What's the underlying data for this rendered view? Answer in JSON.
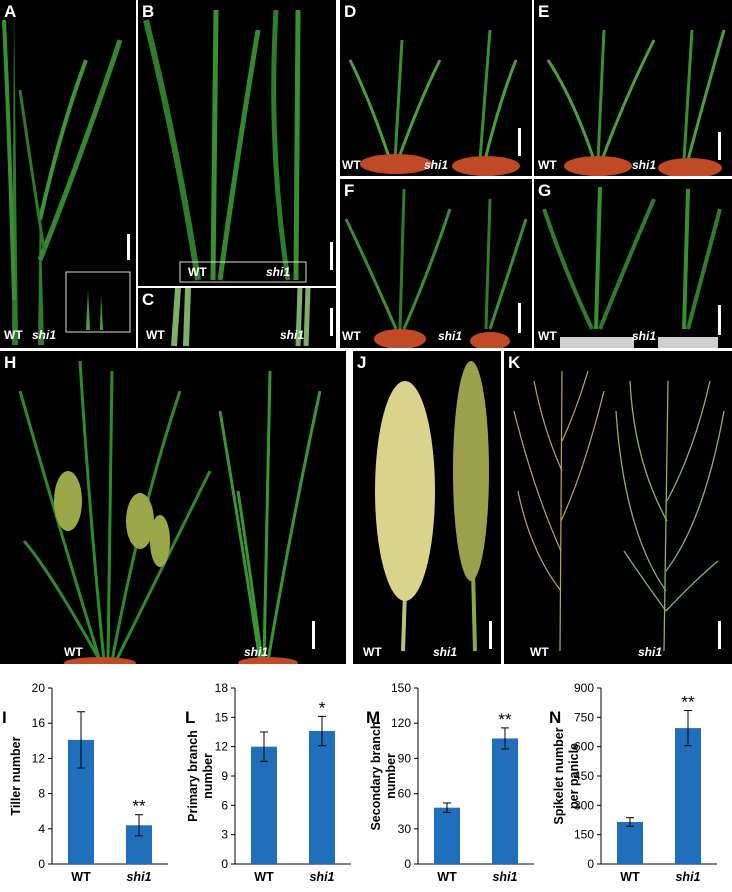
{
  "figure": {
    "panels": [
      {
        "id": "A",
        "labels": [
          "WT",
          "shi1"
        ]
      },
      {
        "id": "B",
        "labels": [
          "WT",
          "shi1"
        ]
      },
      {
        "id": "C",
        "labels": [
          "WT",
          "shi1"
        ]
      },
      {
        "id": "D",
        "labels": [
          "WT",
          "shi1"
        ]
      },
      {
        "id": "E",
        "labels": [
          "WT",
          "shi1"
        ]
      },
      {
        "id": "F",
        "labels": [
          "WT",
          "shi1"
        ]
      },
      {
        "id": "G",
        "labels": [
          "WT",
          "shi1"
        ]
      },
      {
        "id": "H",
        "labels": [
          "WT",
          "shi1"
        ]
      },
      {
        "id": "J",
        "labels": [
          "WT",
          "shi1"
        ]
      },
      {
        "id": "K",
        "labels": [
          "WT",
          "shi1"
        ]
      }
    ]
  },
  "chart_data": [
    {
      "id": "I",
      "type": "bar",
      "categories": [
        "WT",
        "shi1"
      ],
      "values": [
        14.1,
        4.4
      ],
      "errors": [
        3.2,
        1.2
      ],
      "significance": [
        "",
        "**"
      ],
      "title": "",
      "xlabel": "",
      "ylabel": "Tiller number",
      "ylim": [
        0,
        20
      ],
      "yticks": [
        0,
        4,
        8,
        12,
        16,
        20
      ],
      "grid": false,
      "bar_color": "#1f6fba"
    },
    {
      "id": "L",
      "type": "bar",
      "categories": [
        "WT",
        "shi1"
      ],
      "values": [
        12.0,
        13.6
      ],
      "errors": [
        1.5,
        1.5
      ],
      "significance": [
        "",
        "*"
      ],
      "title": "",
      "xlabel": "",
      "ylabel": "Primary branch number",
      "ylim": [
        0,
        18
      ],
      "yticks": [
        0,
        3,
        6,
        9,
        12,
        15,
        18
      ],
      "grid": false,
      "bar_color": "#1f6fba"
    },
    {
      "id": "M",
      "type": "bar",
      "categories": [
        "WT",
        "shi1"
      ],
      "values": [
        48,
        107
      ],
      "errors": [
        4,
        9
      ],
      "significance": [
        "",
        "**"
      ],
      "title": "",
      "xlabel": "",
      "ylabel": "Secondary branch number",
      "ylim": [
        0,
        150
      ],
      "yticks": [
        0,
        30,
        60,
        90,
        120,
        150
      ],
      "grid": false,
      "bar_color": "#1f6fba"
    },
    {
      "id": "N",
      "type": "bar",
      "categories": [
        "WT",
        "shi1"
      ],
      "values": [
        215,
        695
      ],
      "errors": [
        22,
        90
      ],
      "significance": [
        "",
        "**"
      ],
      "title": "",
      "xlabel": "",
      "ylabel": "Spikelet number per panicle",
      "ylim": [
        0,
        900
      ],
      "yticks": [
        0,
        150,
        300,
        450,
        600,
        750,
        900
      ],
      "grid": false,
      "bar_color": "#1f6fba"
    }
  ]
}
